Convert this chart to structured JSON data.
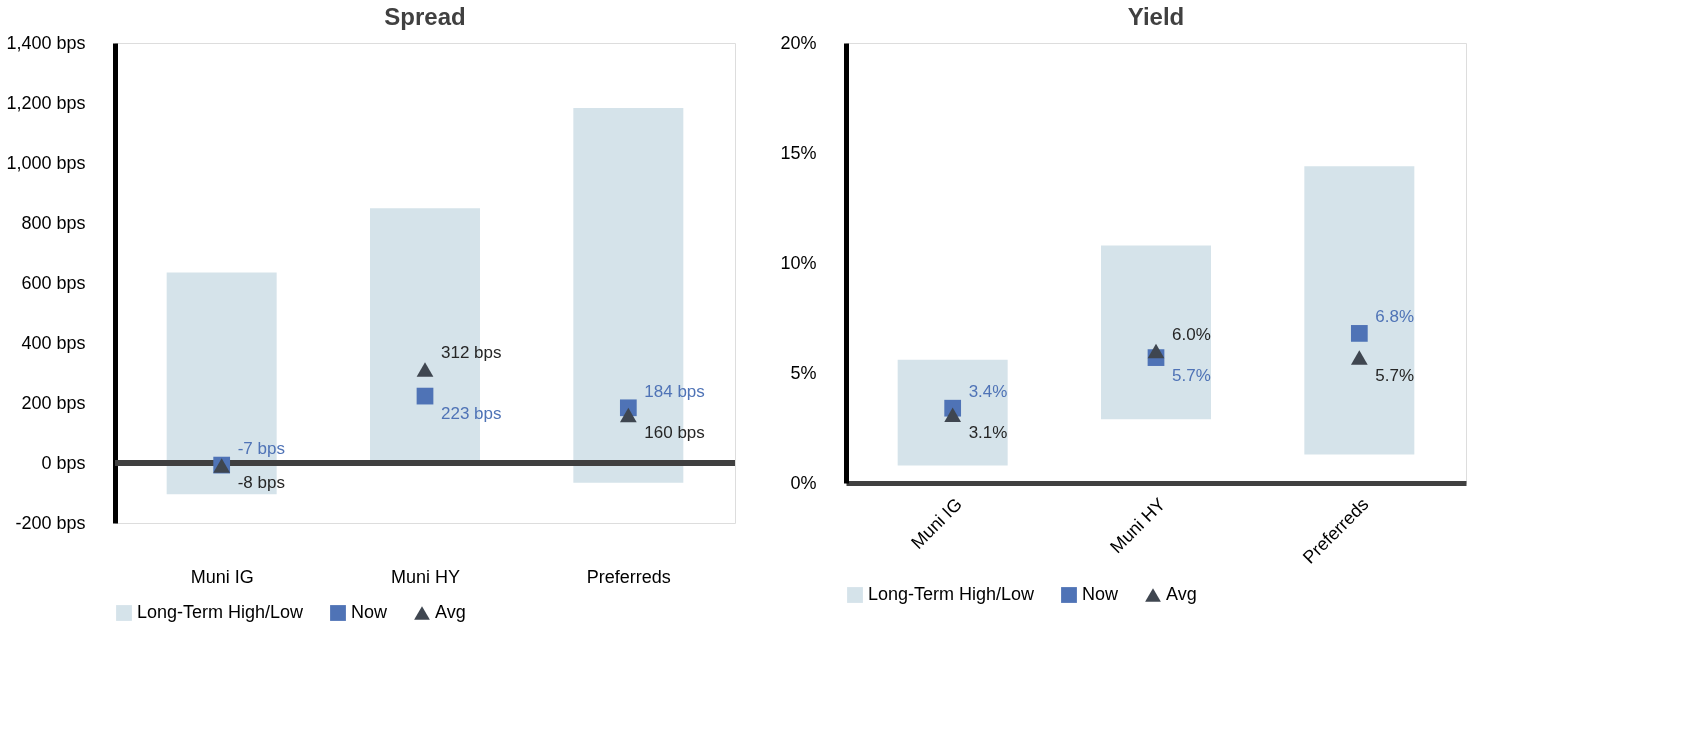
{
  "chart_data": [
    {
      "type": "bar",
      "title": "Spread",
      "categories": [
        "Muni IG",
        "Muni HY",
        "Preferreds"
      ],
      "ylim": [
        -200,
        1400
      ],
      "yticks": [
        {
          "value": -200,
          "label": "-200 bps"
        },
        {
          "value": 0,
          "label": "0 bps"
        },
        {
          "value": 200,
          "label": "200 bps"
        },
        {
          "value": 400,
          "label": "400 bps"
        },
        {
          "value": 600,
          "label": "600 bps"
        },
        {
          "value": 800,
          "label": "800 bps"
        },
        {
          "value": 1000,
          "label": "1,000 bps"
        },
        {
          "value": 1200,
          "label": "1,200 bps"
        },
        {
          "value": 1400,
          "label": "1,400 bps"
        }
      ],
      "grid": false,
      "legend": "bottom",
      "ref_lines": [
        {
          "axis": "y",
          "value": 0,
          "color": "#404040"
        }
      ],
      "series": [
        {
          "name": "Long-Term High/Low",
          "color": "#d5e3ea",
          "base": [
            -104,
            8,
            -66
          ],
          "values": [
            739,
            841,
            1249
          ]
        },
        {
          "name": "Now",
          "type": "scatter",
          "marker": "square",
          "color": "#4f73b6",
          "values": [
            -7,
            223,
            184
          ],
          "value_labels": [
            "-7 bps",
            "223 bps",
            "184 bps"
          ]
        },
        {
          "name": "Avg",
          "type": "scatter",
          "marker": "triangle",
          "color": "#3f4650",
          "values": [
            -8,
            312,
            160
          ],
          "value_labels": [
            "-8 bps",
            "312 bps",
            "160 bps"
          ]
        }
      ]
    },
    {
      "type": "bar",
      "title": "Yield",
      "categories": [
        "Muni IG",
        "Muni HY",
        "Preferreds"
      ],
      "ylim": [
        0,
        20
      ],
      "yticks": [
        {
          "value": 0,
          "label": "0%"
        },
        {
          "value": 5,
          "label": "5%"
        },
        {
          "value": 10,
          "label": "10%"
        },
        {
          "value": 15,
          "label": "15%"
        },
        {
          "value": 20,
          "label": "20%"
        }
      ],
      "grid": false,
      "legend": "bottom",
      "series": [
        {
          "name": "Long-Term High/Low",
          "color": "#d5e3ea",
          "base": [
            0.8,
            2.9,
            1.3
          ],
          "values": [
            4.8,
            7.9,
            13.1
          ]
        },
        {
          "name": "Now",
          "type": "scatter",
          "marker": "square",
          "color": "#4f73b6",
          "values": [
            3.4,
            5.7,
            6.8
          ],
          "value_labels": [
            "3.4%",
            "5.7%",
            "6.8%"
          ]
        },
        {
          "name": "Avg",
          "type": "scatter",
          "marker": "triangle",
          "color": "#3f4650",
          "values": [
            3.1,
            6.0,
            5.7
          ],
          "value_labels": [
            "3.1%",
            "6.0%",
            "5.7%"
          ]
        }
      ]
    }
  ]
}
